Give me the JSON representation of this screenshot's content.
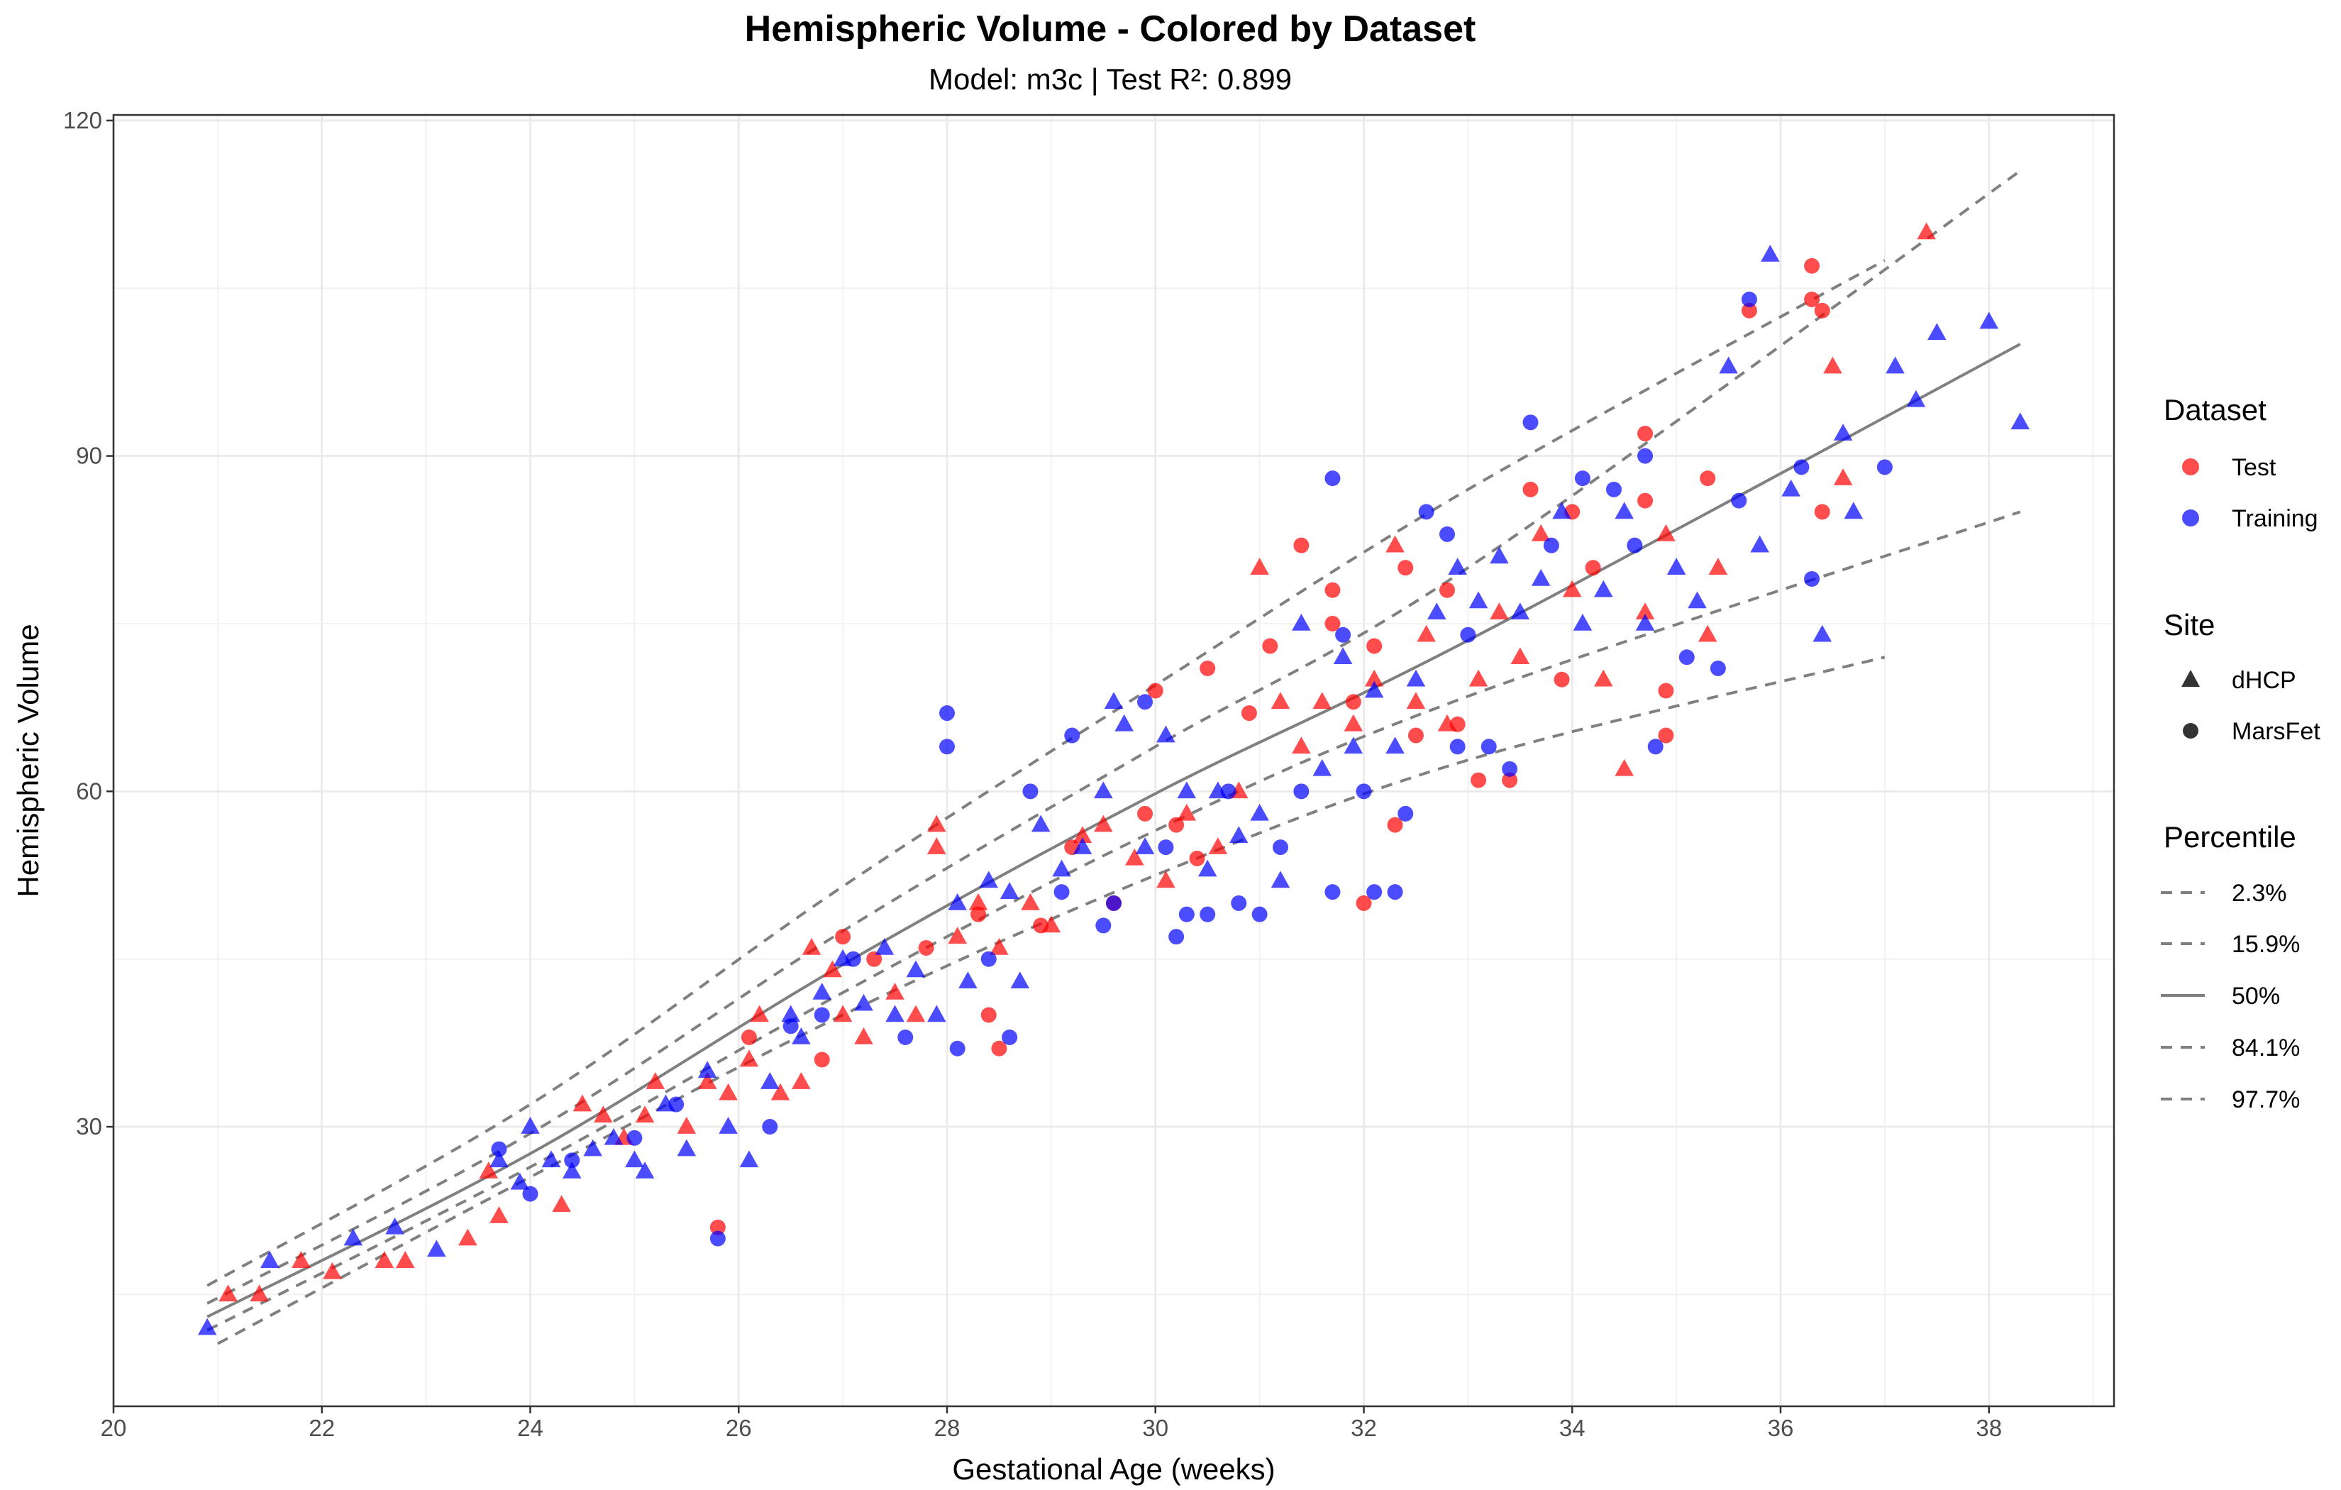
{
  "chart_data": {
    "type": "scatter",
    "title": "Hemispheric Volume - Colored by Dataset",
    "subtitle": "Model: m3c | Test R²: 0.899",
    "xlabel": "Gestational Age (weeks)",
    "ylabel": "Hemispheric Volume",
    "xlim": [
      20,
      39.2
    ],
    "ylim": [
      5,
      120.5
    ],
    "xticks": [
      20,
      22,
      24,
      26,
      28,
      30,
      32,
      34,
      36,
      38
    ],
    "xtick_labels": [
      "20",
      "22",
      "24",
      "26",
      "28",
      "30",
      "32",
      "34",
      "36",
      "38"
    ],
    "yticks": [
      30,
      60,
      90,
      120
    ],
    "ytick_labels": [
      "30",
      "60",
      "90",
      "120"
    ],
    "grid": true,
    "legend_placement": "right",
    "colors": {
      "Test": "#ff0000",
      "Training": "#0000ff",
      "percentile_line": "#808080"
    },
    "point_alpha": 0.7,
    "legends": {
      "dataset": {
        "title": "Dataset",
        "entries": [
          "Test",
          "Training"
        ]
      },
      "site": {
        "title": "Site",
        "entries": [
          "dHCP",
          "MarsFet"
        ],
        "shapes": [
          "triangle",
          "circle"
        ]
      },
      "percentile": {
        "title": "Percentile",
        "entries": [
          "2.3%",
          "15.9%",
          "50%",
          "84.1%",
          "97.7%"
        ],
        "styles": [
          "dashed",
          "dashed",
          "solid",
          "dashed",
          "dashed"
        ]
      }
    },
    "percentile_lines": [
      {
        "name": "2.3%",
        "style": "dashed",
        "x": [
          21.0,
          24,
          27,
          30,
          33,
          37.0
        ],
        "y": [
          10.6,
          25.5,
          40.0,
          52.5,
          62.8,
          72.0
        ]
      },
      {
        "name": "15.9%",
        "style": "dashed",
        "x": [
          20.9,
          24,
          27,
          30,
          33,
          38.3
        ],
        "y": [
          11.8,
          26.4,
          42.0,
          56.5,
          68.5,
          85.0
        ]
      },
      {
        "name": "50%",
        "style": "solid",
        "x": [
          20.9,
          24,
          27,
          30,
          33,
          38.3
        ],
        "y": [
          13.0,
          27.6,
          44.5,
          59.8,
          73.5,
          100.0
        ]
      },
      {
        "name": "84.1%",
        "style": "dashed",
        "x": [
          20.9,
          24,
          27,
          30,
          33,
          38.3
        ],
        "y": [
          14.2,
          29.4,
          47.5,
          64.0,
          80.0,
          115.5
        ]
      },
      {
        "name": "97.7%",
        "style": "dashed",
        "x": [
          20.9,
          24,
          27,
          30,
          33,
          37.0
        ],
        "y": [
          15.8,
          32.0,
          51.5,
          69.5,
          87.0,
          107.5
        ]
      }
    ],
    "series": [
      {
        "name": "Test",
        "site": "dHCP",
        "points": [
          [
            21.1,
            15
          ],
          [
            21.4,
            15
          ],
          [
            21.8,
            18
          ],
          [
            22.1,
            17
          ],
          [
            22.6,
            18
          ],
          [
            22.8,
            18
          ],
          [
            23.4,
            20
          ],
          [
            23.6,
            26
          ],
          [
            23.7,
            22
          ],
          [
            24.3,
            23
          ],
          [
            24.5,
            32
          ],
          [
            24.7,
            31
          ],
          [
            24.9,
            29
          ],
          [
            25.1,
            31
          ],
          [
            25.2,
            34
          ],
          [
            25.5,
            30
          ],
          [
            25.7,
            34
          ],
          [
            25.9,
            33
          ],
          [
            26.1,
            36
          ],
          [
            26.2,
            40
          ],
          [
            26.4,
            33
          ],
          [
            26.6,
            34
          ],
          [
            26.7,
            46
          ],
          [
            26.9,
            44
          ],
          [
            27.0,
            40
          ],
          [
            27.2,
            38
          ],
          [
            27.5,
            42
          ],
          [
            27.7,
            40
          ],
          [
            27.9,
            57
          ],
          [
            27.9,
            55
          ],
          [
            28.1,
            47
          ],
          [
            28.3,
            50
          ],
          [
            28.5,
            46
          ],
          [
            28.8,
            50
          ],
          [
            29.0,
            48
          ],
          [
            29.3,
            56
          ],
          [
            29.5,
            57
          ],
          [
            29.8,
            54
          ],
          [
            30.1,
            52
          ],
          [
            30.3,
            58
          ],
          [
            30.6,
            55
          ],
          [
            30.8,
            60
          ],
          [
            31.0,
            80
          ],
          [
            31.2,
            68
          ],
          [
            31.4,
            64
          ],
          [
            31.6,
            68
          ],
          [
            31.9,
            66
          ],
          [
            32.1,
            70
          ],
          [
            32.3,
            82
          ],
          [
            32.5,
            68
          ],
          [
            32.6,
            74
          ],
          [
            32.8,
            66
          ],
          [
            33.1,
            70
          ],
          [
            33.3,
            76
          ],
          [
            33.5,
            72
          ],
          [
            33.7,
            83
          ],
          [
            34.0,
            78
          ],
          [
            34.3,
            70
          ],
          [
            34.5,
            62
          ],
          [
            34.7,
            76
          ],
          [
            34.9,
            83
          ],
          [
            35.3,
            74
          ],
          [
            35.4,
            80
          ],
          [
            36.5,
            98
          ],
          [
            36.6,
            88
          ],
          [
            37.4,
            110
          ]
        ]
      },
      {
        "name": "Test",
        "site": "MarsFet",
        "points": [
          [
            25.8,
            21
          ],
          [
            26.1,
            38
          ],
          [
            26.8,
            36
          ],
          [
            27.0,
            47
          ],
          [
            27.3,
            45
          ],
          [
            27.8,
            46
          ],
          [
            28.3,
            49
          ],
          [
            28.4,
            40
          ],
          [
            28.5,
            37
          ],
          [
            28.9,
            48
          ],
          [
            29.2,
            55
          ],
          [
            29.6,
            50
          ],
          [
            29.9,
            58
          ],
          [
            30.0,
            69
          ],
          [
            30.2,
            57
          ],
          [
            30.4,
            54
          ],
          [
            30.5,
            71
          ],
          [
            30.9,
            67
          ],
          [
            31.1,
            73
          ],
          [
            31.4,
            82
          ],
          [
            31.7,
            78
          ],
          [
            31.7,
            75
          ],
          [
            31.9,
            68
          ],
          [
            32.0,
            50
          ],
          [
            32.1,
            73
          ],
          [
            32.3,
            57
          ],
          [
            32.4,
            80
          ],
          [
            32.5,
            65
          ],
          [
            32.8,
            78
          ],
          [
            32.9,
            66
          ],
          [
            33.1,
            61
          ],
          [
            33.4,
            61
          ],
          [
            33.6,
            87
          ],
          [
            33.9,
            70
          ],
          [
            34.0,
            85
          ],
          [
            34.2,
            80
          ],
          [
            34.7,
            92
          ],
          [
            34.7,
            86
          ],
          [
            34.9,
            65
          ],
          [
            34.9,
            69
          ],
          [
            35.3,
            88
          ],
          [
            35.7,
            103
          ],
          [
            36.3,
            107
          ],
          [
            36.3,
            104
          ],
          [
            36.4,
            103
          ],
          [
            36.4,
            85
          ]
        ]
      },
      {
        "name": "Training",
        "site": "dHCP",
        "points": [
          [
            20.9,
            12
          ],
          [
            21.5,
            18
          ],
          [
            22.3,
            20
          ],
          [
            22.7,
            21
          ],
          [
            23.1,
            19
          ],
          [
            23.7,
            27
          ],
          [
            23.9,
            25
          ],
          [
            24.0,
            30
          ],
          [
            24.2,
            27
          ],
          [
            24.4,
            26
          ],
          [
            24.6,
            28
          ],
          [
            24.8,
            29
          ],
          [
            25.0,
            27
          ],
          [
            25.1,
            26
          ],
          [
            25.3,
            32
          ],
          [
            25.5,
            28
          ],
          [
            25.7,
            35
          ],
          [
            25.9,
            30
          ],
          [
            26.1,
            27
          ],
          [
            26.3,
            34
          ],
          [
            26.5,
            40
          ],
          [
            26.6,
            38
          ],
          [
            26.8,
            42
          ],
          [
            27.0,
            45
          ],
          [
            27.2,
            41
          ],
          [
            27.4,
            46
          ],
          [
            27.5,
            40
          ],
          [
            27.7,
            44
          ],
          [
            27.9,
            40
          ],
          [
            28.1,
            50
          ],
          [
            28.2,
            43
          ],
          [
            28.4,
            52
          ],
          [
            28.6,
            51
          ],
          [
            28.7,
            43
          ],
          [
            28.9,
            57
          ],
          [
            29.1,
            53
          ],
          [
            29.3,
            55
          ],
          [
            29.5,
            60
          ],
          [
            29.6,
            68
          ],
          [
            29.7,
            66
          ],
          [
            29.9,
            55
          ],
          [
            30.1,
            65
          ],
          [
            30.3,
            60
          ],
          [
            30.5,
            53
          ],
          [
            30.6,
            60
          ],
          [
            30.8,
            56
          ],
          [
            31.0,
            58
          ],
          [
            31.2,
            52
          ],
          [
            31.4,
            75
          ],
          [
            31.6,
            62
          ],
          [
            31.8,
            72
          ],
          [
            31.9,
            64
          ],
          [
            32.1,
            69
          ],
          [
            32.3,
            64
          ],
          [
            32.5,
            70
          ],
          [
            32.7,
            76
          ],
          [
            32.9,
            80
          ],
          [
            33.1,
            77
          ],
          [
            33.3,
            81
          ],
          [
            33.5,
            76
          ],
          [
            33.7,
            79
          ],
          [
            33.9,
            85
          ],
          [
            34.1,
            75
          ],
          [
            34.3,
            78
          ],
          [
            34.5,
            85
          ],
          [
            34.7,
            75
          ],
          [
            35.0,
            80
          ],
          [
            35.2,
            77
          ],
          [
            35.5,
            98
          ],
          [
            35.8,
            82
          ],
          [
            35.9,
            108
          ],
          [
            36.1,
            87
          ],
          [
            36.4,
            74
          ],
          [
            36.6,
            92
          ],
          [
            36.7,
            85
          ],
          [
            37.1,
            98
          ],
          [
            37.3,
            95
          ],
          [
            37.5,
            101
          ],
          [
            38.0,
            102
          ],
          [
            38.3,
            93
          ]
        ]
      },
      {
        "name": "Training",
        "site": "MarsFet",
        "points": [
          [
            23.7,
            28
          ],
          [
            24.0,
            24
          ],
          [
            24.4,
            27
          ],
          [
            25.0,
            29
          ],
          [
            25.4,
            32
          ],
          [
            25.8,
            20
          ],
          [
            26.3,
            30
          ],
          [
            26.5,
            39
          ],
          [
            26.8,
            40
          ],
          [
            27.1,
            45
          ],
          [
            27.6,
            38
          ],
          [
            28.0,
            67
          ],
          [
            28.0,
            64
          ],
          [
            28.1,
            37
          ],
          [
            28.4,
            45
          ],
          [
            28.6,
            38
          ],
          [
            28.8,
            60
          ],
          [
            29.1,
            51
          ],
          [
            29.2,
            65
          ],
          [
            29.5,
            48
          ],
          [
            29.6,
            50
          ],
          [
            29.9,
            68
          ],
          [
            30.1,
            55
          ],
          [
            30.2,
            47
          ],
          [
            30.3,
            49
          ],
          [
            30.5,
            49
          ],
          [
            30.7,
            60
          ],
          [
            30.8,
            50
          ],
          [
            31.0,
            49
          ],
          [
            31.2,
            55
          ],
          [
            31.4,
            60
          ],
          [
            31.7,
            88
          ],
          [
            31.7,
            51
          ],
          [
            31.8,
            74
          ],
          [
            32.0,
            60
          ],
          [
            32.1,
            51
          ],
          [
            32.3,
            51
          ],
          [
            32.4,
            58
          ],
          [
            32.6,
            85
          ],
          [
            32.8,
            83
          ],
          [
            32.9,
            64
          ],
          [
            33.0,
            74
          ],
          [
            33.2,
            64
          ],
          [
            33.4,
            62
          ],
          [
            33.6,
            93
          ],
          [
            33.8,
            82
          ],
          [
            34.1,
            88
          ],
          [
            34.4,
            87
          ],
          [
            34.6,
            82
          ],
          [
            34.7,
            90
          ],
          [
            34.8,
            64
          ],
          [
            35.1,
            72
          ],
          [
            35.4,
            71
          ],
          [
            35.6,
            86
          ],
          [
            35.7,
            104
          ],
          [
            36.2,
            89
          ],
          [
            36.3,
            79
          ],
          [
            37.0,
            89
          ]
        ]
      }
    ]
  }
}
